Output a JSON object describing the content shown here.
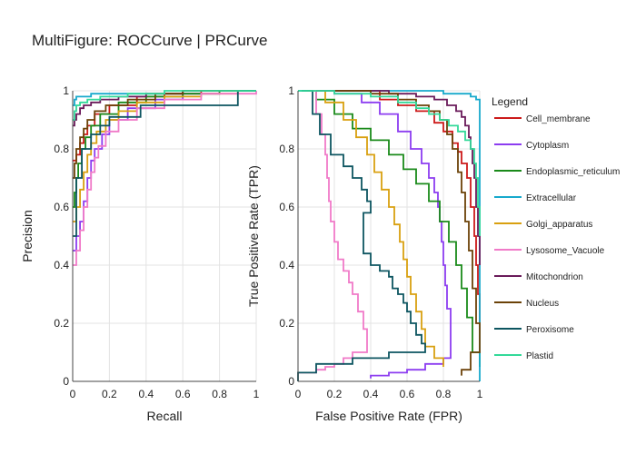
{
  "figure": {
    "title": "MultiFigure: ROCCurve | PRCurve"
  },
  "legend": {
    "title": "Legend"
  },
  "colors": {
    "Cell_membrane": "#cc1a1a",
    "Cytoplasm": "#8c3cf0",
    "Endoplasmic_reticulum": "#1a8a1a",
    "Extracellular": "#17a9cc",
    "Golgi_apparatus": "#d9a010",
    "Lysosome_Vacuole": "#f07ac8",
    "Mitochondrion": "#6a1a5a",
    "Nucleus": "#6b4208",
    "Peroxisome": "#0d5560",
    "Plastid": "#33d999"
  },
  "chart_data": [
    {
      "type": "line",
      "panel": "left",
      "title": "",
      "xlabel": "Recall",
      "ylabel": "Precision",
      "xlim": [
        0,
        1
      ],
      "ylim": [
        0,
        1
      ],
      "xticks": [
        "0",
        "0.2",
        "0.4",
        "0.6",
        "0.8",
        "1"
      ],
      "yticks": [
        "0",
        "0.2",
        "0.4",
        "0.6",
        "0.8",
        "1"
      ],
      "grid": true,
      "series": [
        {
          "name": "Cell_membrane",
          "x": [
            0,
            0.02,
            0.04,
            0.06,
            0.08,
            0.12,
            0.2,
            0.35,
            0.5,
            0.7,
            0.85,
            1
          ],
          "y": [
            0.76,
            0.78,
            0.82,
            0.85,
            0.88,
            0.92,
            0.95,
            0.98,
            0.99,
            1,
            1,
            1
          ]
        },
        {
          "name": "Cytoplasm",
          "x": [
            0,
            0.02,
            0.04,
            0.06,
            0.08,
            0.1,
            0.12,
            0.16,
            0.2,
            0.3,
            0.45,
            0.6,
            0.8,
            1
          ],
          "y": [
            0.45,
            0.5,
            0.55,
            0.62,
            0.7,
            0.76,
            0.8,
            0.85,
            0.9,
            0.94,
            0.97,
            0.99,
            1,
            1
          ]
        },
        {
          "name": "Endoplasmic_reticulum",
          "x": [
            0,
            0.01,
            0.02,
            0.03,
            0.05,
            0.07,
            0.1,
            0.15,
            0.25,
            0.4,
            0.6,
            0.8,
            1
          ],
          "y": [
            0.6,
            0.65,
            0.7,
            0.75,
            0.8,
            0.84,
            0.88,
            0.92,
            0.96,
            0.98,
            0.99,
            1,
            1
          ]
        },
        {
          "name": "Extracellular",
          "x": [
            0,
            0.01,
            0.02,
            0.05,
            0.1,
            0.3,
            0.6,
            1
          ],
          "y": [
            0.95,
            0.97,
            0.98,
            0.98,
            0.99,
            0.99,
            1,
            1
          ]
        },
        {
          "name": "Golgi_apparatus",
          "x": [
            0,
            0.02,
            0.04,
            0.06,
            0.08,
            0.1,
            0.13,
            0.18,
            0.25,
            0.35,
            0.5,
            0.7,
            0.9,
            1
          ],
          "y": [
            0.55,
            0.6,
            0.66,
            0.72,
            0.78,
            0.82,
            0.86,
            0.9,
            0.93,
            0.96,
            0.98,
            0.99,
            1,
            1
          ]
        },
        {
          "name": "Lysosome_Vacuole",
          "x": [
            0,
            0.02,
            0.04,
            0.06,
            0.08,
            0.1,
            0.12,
            0.14,
            0.18,
            0.25,
            0.35,
            0.5,
            0.7,
            1
          ],
          "y": [
            0.4,
            0.45,
            0.52,
            0.6,
            0.66,
            0.72,
            0.77,
            0.81,
            0.86,
            0.9,
            0.94,
            0.97,
            0.99,
            1
          ]
        },
        {
          "name": "Mitochondrion",
          "x": [
            0,
            0.01,
            0.02,
            0.04,
            0.06,
            0.1,
            0.15,
            0.25,
            0.4,
            0.6,
            0.8,
            1
          ],
          "y": [
            0.88,
            0.9,
            0.92,
            0.94,
            0.95,
            0.96,
            0.97,
            0.98,
            0.99,
            1,
            1,
            1
          ]
        },
        {
          "name": "Nucleus",
          "x": [
            0,
            0.01,
            0.02,
            0.04,
            0.06,
            0.08,
            0.12,
            0.18,
            0.3,
            0.45,
            0.6,
            0.8,
            1
          ],
          "y": [
            0.7,
            0.75,
            0.8,
            0.84,
            0.87,
            0.9,
            0.93,
            0.95,
            0.97,
            0.99,
            1,
            1,
            1
          ]
        },
        {
          "name": "Peroxisome",
          "x": [
            0,
            0.02,
            0.05,
            0.1,
            0.15,
            0.2,
            0.37,
            0.57,
            0.7,
            0.9,
            1
          ],
          "y": [
            0.5,
            0.7,
            0.8,
            0.85,
            0.88,
            0.91,
            0.95,
            0.95,
            0.95,
            1,
            1
          ]
        },
        {
          "name": "Plastid",
          "x": [
            0,
            0.01,
            0.02,
            0.04,
            0.08,
            0.15,
            0.3,
            0.5,
            0.75,
            1
          ],
          "y": [
            0.9,
            0.93,
            0.95,
            0.96,
            0.97,
            0.98,
            0.99,
            1,
            1,
            1
          ]
        }
      ]
    },
    {
      "type": "line",
      "panel": "right",
      "title": "",
      "xlabel": "False Positive Rate (FPR)",
      "ylabel": "True Positive Rate (TPR)",
      "xlim": [
        0,
        1
      ],
      "ylim": [
        0,
        1
      ],
      "xticks": [
        "0",
        "0.2",
        "0.4",
        "0.6",
        "0.8",
        "1"
      ],
      "yticks": [
        "0",
        "0.2",
        "0.4",
        "0.6",
        "0.8",
        "1"
      ],
      "grid": true,
      "series": [
        {
          "name": "Cell_membrane",
          "x": [
            0.05,
            0.25,
            0.45,
            0.55,
            0.65,
            0.75,
            0.8,
            0.85,
            0.88,
            0.9,
            0.93,
            0.95,
            0.97,
            0.98,
            0.99,
            1
          ],
          "y": [
            1,
            1,
            0.97,
            0.95,
            0.93,
            0.89,
            0.86,
            0.82,
            0.79,
            0.75,
            0.7,
            0.6,
            0.5,
            0.4,
            0.3,
            0.2
          ]
        },
        {
          "name": "Cytoplasm",
          "x": [
            0.05,
            0.2,
            0.35,
            0.45,
            0.55,
            0.62,
            0.68,
            0.72,
            0.75,
            0.77,
            0.78,
            0.79,
            0.8,
            0.81,
            0.82,
            0.84,
            0.8,
            0.7,
            0.6,
            0.5,
            0.4
          ],
          "y": [
            1,
            0.99,
            0.96,
            0.92,
            0.86,
            0.8,
            0.75,
            0.7,
            0.65,
            0.6,
            0.55,
            0.48,
            0.4,
            0.33,
            0.25,
            0.08,
            0.06,
            0.04,
            0.03,
            0.02,
            0.01
          ]
        },
        {
          "name": "Endoplasmic_reticulum",
          "x": [
            0.02,
            0.1,
            0.2,
            0.3,
            0.4,
            0.5,
            0.58,
            0.65,
            0.72,
            0.78,
            0.83,
            0.87,
            0.9,
            0.93,
            0.96,
            1
          ],
          "y": [
            1,
            0.97,
            0.92,
            0.87,
            0.83,
            0.78,
            0.73,
            0.68,
            0.62,
            0.55,
            0.48,
            0.4,
            0.32,
            0.22,
            0.1,
            0.05
          ]
        },
        {
          "name": "Extracellular",
          "x": [
            0,
            0.2,
            0.5,
            0.8,
            0.9,
            0.95,
            0.98,
            1,
            1,
            1
          ],
          "y": [
            1,
            1,
            1,
            0.99,
            0.99,
            0.98,
            0.97,
            0.95,
            0.5,
            0
          ]
        },
        {
          "name": "Golgi_apparatus",
          "x": [
            0.05,
            0.15,
            0.25,
            0.32,
            0.38,
            0.42,
            0.46,
            0.5,
            0.53,
            0.56,
            0.58,
            0.6,
            0.62,
            0.65,
            0.68,
            0.7,
            0.75,
            0.8
          ],
          "y": [
            1,
            0.96,
            0.9,
            0.84,
            0.78,
            0.72,
            0.66,
            0.6,
            0.54,
            0.48,
            0.42,
            0.36,
            0.3,
            0.24,
            0.18,
            0.12,
            0.08,
            0.05
          ]
        },
        {
          "name": "Lysosome_Vacuole",
          "x": [
            0.07,
            0.1,
            0.13,
            0.15,
            0.16,
            0.17,
            0.18,
            0.2,
            0.22,
            0.25,
            0.28,
            0.3,
            0.33,
            0.36,
            0.38,
            0.3,
            0.25,
            0.2,
            0.15,
            0.1,
            0
          ],
          "y": [
            1,
            0.92,
            0.85,
            0.78,
            0.7,
            0.62,
            0.55,
            0.48,
            0.42,
            0.38,
            0.34,
            0.3,
            0.24,
            0.18,
            0.1,
            0.08,
            0.06,
            0.05,
            0.04,
            0.03,
            0.03
          ]
        },
        {
          "name": "Mitochondrion",
          "x": [
            0.1,
            0.3,
            0.5,
            0.65,
            0.75,
            0.82,
            0.87,
            0.9,
            0.92,
            0.94,
            0.95,
            0.96,
            0.97,
            0.98,
            0.99,
            1
          ],
          "y": [
            1,
            1,
            0.99,
            0.98,
            0.97,
            0.95,
            0.93,
            0.91,
            0.88,
            0.84,
            0.8,
            0.75,
            0.7,
            0.6,
            0.5,
            0.4
          ]
        },
        {
          "name": "Nucleus",
          "x": [
            0.2,
            0.4,
            0.55,
            0.65,
            0.72,
            0.78,
            0.82,
            0.85,
            0.88,
            0.9,
            0.92,
            0.94,
            0.96,
            0.98,
            1,
            0.95,
            0.9
          ],
          "y": [
            1,
            0.99,
            0.97,
            0.95,
            0.93,
            0.9,
            0.85,
            0.8,
            0.72,
            0.65,
            0.55,
            0.45,
            0.32,
            0.2,
            0.1,
            0.04,
            0.02
          ]
        },
        {
          "name": "Peroxisome",
          "x": [
            0.02,
            0.08,
            0.12,
            0.18,
            0.25,
            0.3,
            0.35,
            0.38,
            0.4,
            0.36,
            0.4,
            0.45,
            0.5,
            0.52,
            0.55,
            0.58,
            0.6,
            0.62,
            0.65,
            0.68,
            0.7,
            0.5,
            0.3,
            0.1,
            0
          ],
          "y": [
            1,
            0.92,
            0.85,
            0.78,
            0.74,
            0.7,
            0.66,
            0.62,
            0.58,
            0.44,
            0.4,
            0.38,
            0.36,
            0.32,
            0.3,
            0.27,
            0.24,
            0.2,
            0.16,
            0.13,
            0.1,
            0.08,
            0.06,
            0.03,
            0
          ]
        },
        {
          "name": "Plastid",
          "x": [
            0,
            0.2,
            0.4,
            0.55,
            0.65,
            0.72,
            0.78,
            0.83,
            0.88,
            0.92,
            0.95,
            0.97,
            0.98,
            0.99,
            1
          ],
          "y": [
            1,
            0.99,
            0.98,
            0.96,
            0.94,
            0.92,
            0.9,
            0.88,
            0.86,
            0.83,
            0.8,
            0.75,
            0.7,
            0.6,
            0.5
          ]
        }
      ]
    }
  ]
}
